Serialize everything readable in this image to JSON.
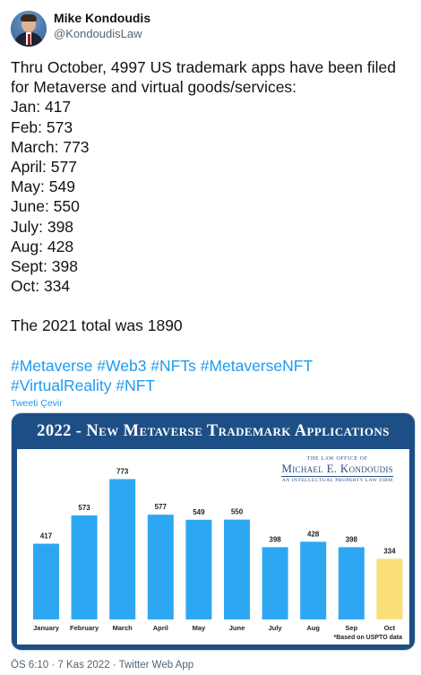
{
  "author": {
    "name": "Mike Kondoudis",
    "handle": "@KondoudisLaw"
  },
  "tweet": {
    "lines": [
      "Thru October, 4997 US trademark apps have been filed",
      "for Metaverse and virtual goods/services:",
      "Jan: 417",
      "Feb: 573",
      "March: 773",
      "April: 577",
      "May: 549",
      "June: 550",
      "July: 398",
      "Aug: 428",
      "Sept: 398",
      "Oct: 334"
    ],
    "total_line": "The 2021 total was 1890",
    "hashtags_line1": "#Metaverse #Web3 #NFTs #MetaverseNFT",
    "hashtags_line2": "#VirtualReality #NFT",
    "translate_label": "Tweeti Çevir"
  },
  "media": {
    "logo_small": "THE LAW OFFICE OF",
    "logo_big": "Michael E. Kondoudis",
    "logo_sub": "AN INTELLECTUAL PROPERTY LAW FIRM",
    "footnote": "*Based on USPTO data"
  },
  "chart_data": {
    "type": "bar",
    "title": "2022 - New Metaverse Trademark Applications",
    "categories": [
      "January",
      "February",
      "March",
      "April",
      "May",
      "June",
      "July",
      "Aug",
      "Sep",
      "Oct"
    ],
    "values": [
      417,
      573,
      773,
      577,
      549,
      550,
      398,
      428,
      398,
      334
    ],
    "colors": {
      "default": "#2ea7f2",
      "highlight": "#fbe07a",
      "highlight_index": 9
    },
    "ylim": [
      0,
      800
    ],
    "grid": false
  },
  "meta": {
    "timestamp": "ÖS 6:10 · 7 Kas 2022 · Twitter Web App"
  },
  "colors": {
    "link": "#1d9bf0",
    "header_bg": "#1d4f86",
    "text_secondary": "#536471"
  }
}
